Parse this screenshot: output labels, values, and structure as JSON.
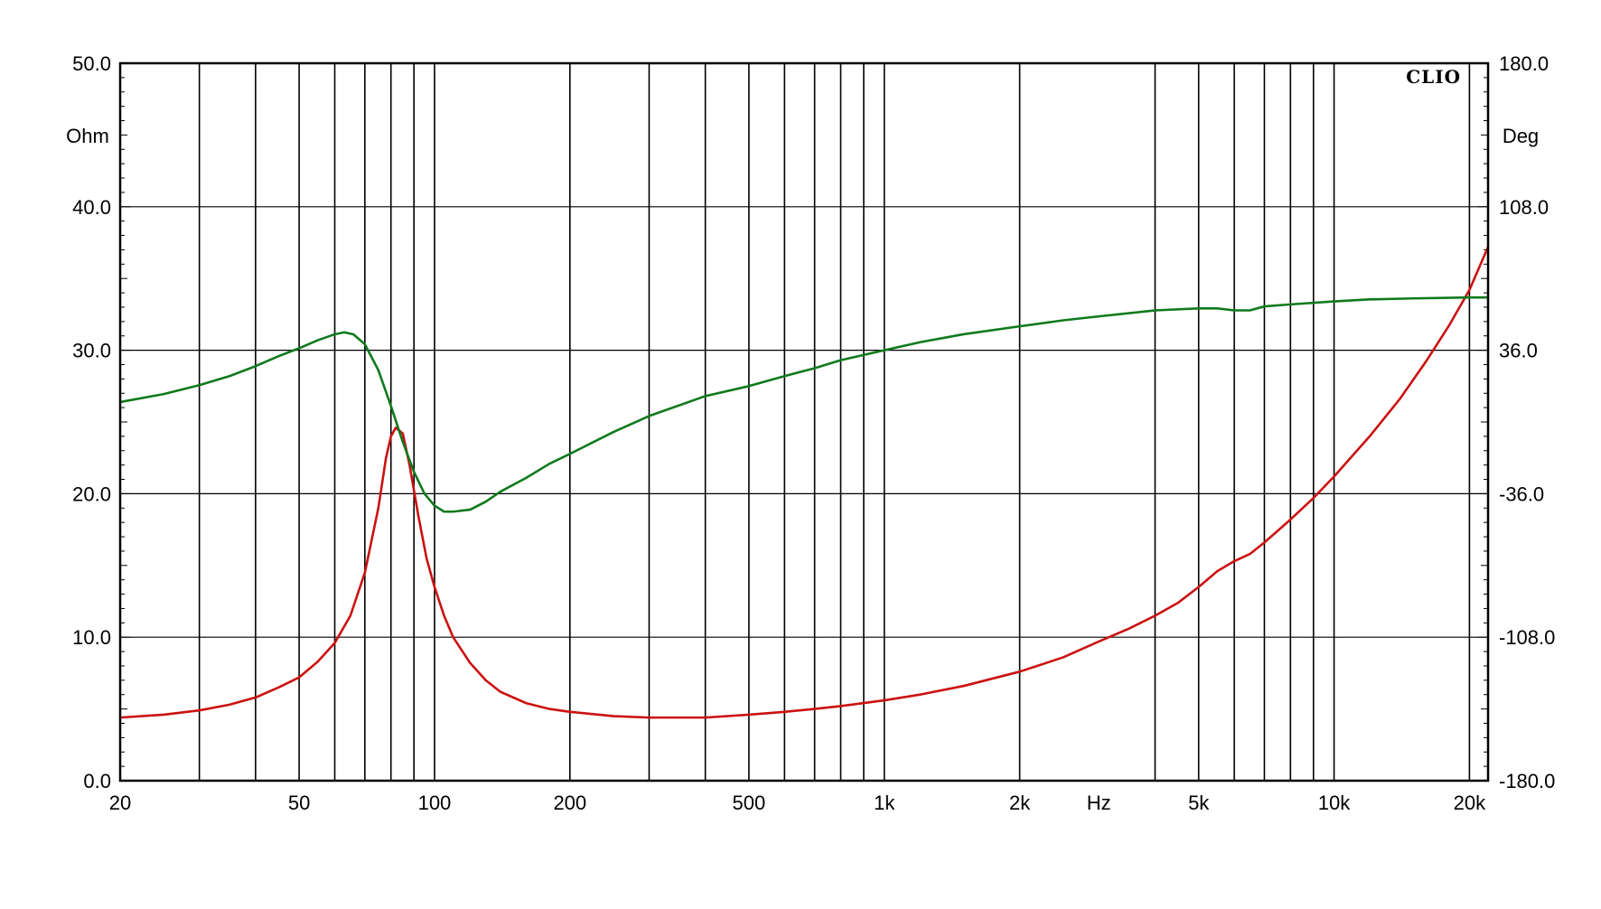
{
  "chart_data": {
    "type": "line",
    "brand_label": "CLIO",
    "x_scale": "log",
    "xlim": [
      20,
      22000
    ],
    "x_unit_label": "Hz",
    "x_ticks": [
      {
        "value": 20,
        "label": "20"
      },
      {
        "value": 50,
        "label": "50"
      },
      {
        "value": 100,
        "label": "100"
      },
      {
        "value": 200,
        "label": "200"
      },
      {
        "value": 500,
        "label": "500"
      },
      {
        "value": 1000,
        "label": "1k"
      },
      {
        "value": 2000,
        "label": "2k"
      },
      {
        "value": 5000,
        "label": "5k"
      },
      {
        "value": 10000,
        "label": "10k"
      },
      {
        "value": 20000,
        "label": "20k"
      }
    ],
    "x_gridlines": [
      30,
      40,
      50,
      60,
      70,
      80,
      90,
      100,
      200,
      300,
      400,
      500,
      600,
      700,
      800,
      900,
      1000,
      2000,
      4000,
      5000,
      6000,
      7000,
      8000,
      9000,
      10000,
      20000
    ],
    "x_unit_position": 3000,
    "y_left": {
      "unit_label": "Ohm",
      "ylim": [
        0,
        50
      ],
      "ticks": [
        {
          "value": 0,
          "label": "0.0"
        },
        {
          "value": 10,
          "label": "10.0"
        },
        {
          "value": 20,
          "label": "20.0"
        },
        {
          "value": 30,
          "label": "30.0"
        },
        {
          "value": 40,
          "label": "40.0"
        },
        {
          "value": 50,
          "label": "50.0"
        }
      ]
    },
    "y_right": {
      "unit_label": "Deg",
      "ylim": [
        -180,
        180
      ],
      "ticks": [
        {
          "value": -180,
          "label": "-180.0"
        },
        {
          "value": -108,
          "label": "-108.0"
        },
        {
          "value": -36,
          "label": "-36.0"
        },
        {
          "value": 36,
          "label": "36.0"
        },
        {
          "value": 108,
          "label": "108.0"
        },
        {
          "value": 180,
          "label": "180.0"
        }
      ]
    },
    "grid": true,
    "series": [
      {
        "color": "#cc1111",
        "axis": "left",
        "points": [
          [
            20,
            4.4
          ],
          [
            25,
            4.6
          ],
          [
            30,
            4.9
          ],
          [
            35,
            5.3
          ],
          [
            40,
            5.8
          ],
          [
            45,
            6.5
          ],
          [
            50,
            7.2
          ],
          [
            55,
            8.3
          ],
          [
            60,
            9.6
          ],
          [
            65,
            11.5
          ],
          [
            70,
            14.5
          ],
          [
            75,
            19.0
          ],
          [
            78,
            22.5
          ],
          [
            80,
            24.0
          ],
          [
            82,
            24.6
          ],
          [
            85,
            24.2
          ],
          [
            88,
            22.0
          ],
          [
            92,
            18.5
          ],
          [
            96,
            15.5
          ],
          [
            100,
            13.5
          ],
          [
            105,
            11.5
          ],
          [
            110,
            10.0
          ],
          [
            120,
            8.2
          ],
          [
            130,
            7.0
          ],
          [
            140,
            6.2
          ],
          [
            160,
            5.4
          ],
          [
            180,
            5.0
          ],
          [
            200,
            4.8
          ],
          [
            250,
            4.5
          ],
          [
            300,
            4.4
          ],
          [
            400,
            4.4
          ],
          [
            500,
            4.6
          ],
          [
            600,
            4.8
          ],
          [
            700,
            5.0
          ],
          [
            800,
            5.2
          ],
          [
            1000,
            5.6
          ],
          [
            1200,
            6.0
          ],
          [
            1500,
            6.6
          ],
          [
            2000,
            7.6
          ],
          [
            2500,
            8.6
          ],
          [
            3000,
            9.7
          ],
          [
            3500,
            10.6
          ],
          [
            4000,
            11.5
          ],
          [
            4500,
            12.4
          ],
          [
            5000,
            13.5
          ],
          [
            5500,
            14.6
          ],
          [
            6000,
            15.3
          ],
          [
            6500,
            15.8
          ],
          [
            7000,
            16.6
          ],
          [
            8000,
            18.2
          ],
          [
            9000,
            19.7
          ],
          [
            10000,
            21.2
          ],
          [
            12000,
            24.0
          ],
          [
            14000,
            26.6
          ],
          [
            16000,
            29.2
          ],
          [
            18000,
            31.7
          ],
          [
            20000,
            34.2
          ],
          [
            22000,
            37.2
          ]
        ]
      },
      {
        "color": "#0f7a1c",
        "axis": "right",
        "points": [
          [
            20,
            10.0
          ],
          [
            25,
            14.0
          ],
          [
            30,
            18.5
          ],
          [
            35,
            23.0
          ],
          [
            40,
            28.0
          ],
          [
            45,
            33.0
          ],
          [
            50,
            37.0
          ],
          [
            55,
            41.0
          ],
          [
            60,
            44.0
          ],
          [
            63,
            45.0
          ],
          [
            66,
            44.0
          ],
          [
            70,
            39.0
          ],
          [
            75,
            26.0
          ],
          [
            80,
            8.0
          ],
          [
            85,
            -10.0
          ],
          [
            90,
            -25.0
          ],
          [
            95,
            -36.0
          ],
          [
            100,
            -42.0
          ],
          [
            105,
            -45.0
          ],
          [
            110,
            -45.0
          ],
          [
            120,
            -44.0
          ],
          [
            130,
            -40.0
          ],
          [
            140,
            -35.0
          ],
          [
            160,
            -28.0
          ],
          [
            180,
            -21.0
          ],
          [
            200,
            -16.0
          ],
          [
            250,
            -5.0
          ],
          [
            300,
            3.0
          ],
          [
            400,
            13.0
          ],
          [
            500,
            18.0
          ],
          [
            600,
            23.0
          ],
          [
            700,
            27.0
          ],
          [
            800,
            31.0
          ],
          [
            1000,
            36.0
          ],
          [
            1200,
            40.0
          ],
          [
            1500,
            44.0
          ],
          [
            2000,
            48.0
          ],
          [
            2500,
            51.0
          ],
          [
            3000,
            53.0
          ],
          [
            4000,
            56.0
          ],
          [
            5000,
            57.0
          ],
          [
            5500,
            57.0
          ],
          [
            6000,
            56.0
          ],
          [
            6500,
            56.0
          ],
          [
            7000,
            58.0
          ],
          [
            8000,
            59.0
          ],
          [
            10000,
            60.5
          ],
          [
            12000,
            61.5
          ],
          [
            15000,
            62.0
          ],
          [
            20000,
            62.5
          ],
          [
            22000,
            62.5
          ]
        ]
      }
    ]
  }
}
